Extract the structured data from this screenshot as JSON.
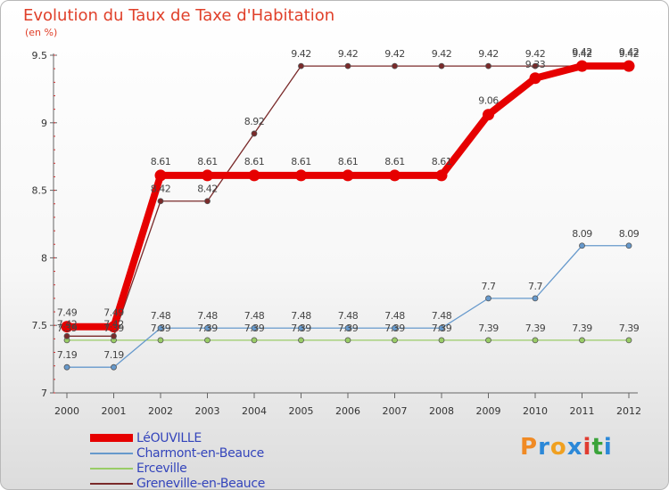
{
  "header": {
    "title": "Evolution du Taux de Taxe d'Habitation",
    "unit": "(en %)"
  },
  "logo": {
    "text": "Proxiti",
    "colors": [
      "#f08a24",
      "#2b88d8",
      "#f0a020",
      "#2b88d8",
      "#e03c31",
      "#3aa33a",
      "#2b88d8"
    ]
  },
  "chart_data": {
    "type": "line",
    "title": "Evolution du Taux de Taxe d'Habitation",
    "ylabel": "(en %)",
    "xlabel": "",
    "x": [
      "2000",
      "2001",
      "2002",
      "2003",
      "2004",
      "2005",
      "2006",
      "2007",
      "2008",
      "2009",
      "2010",
      "2011",
      "2012"
    ],
    "ylim": [
      7,
      9.5
    ],
    "yticks": [
      "7",
      "7.5",
      "8",
      "8.5",
      "9",
      "9.5"
    ],
    "series": [
      {
        "name": "LéOUVILLE",
        "color": "#e60000",
        "values": [
          7.49,
          7.49,
          8.61,
          8.61,
          8.61,
          8.61,
          8.61,
          8.61,
          8.61,
          9.06,
          9.33,
          9.42,
          9.42
        ],
        "labels": [
          "7.49",
          "7.49",
          "8.61",
          "8.61",
          "8.61",
          "8.61",
          "8.61",
          "8.61",
          "8.61",
          "9.06",
          "9.33",
          "9.42",
          "9.42"
        ]
      },
      {
        "name": "Charmont-en-Beauce",
        "color": "#6699cc",
        "values": [
          7.19,
          7.19,
          7.48,
          7.48,
          7.48,
          7.48,
          7.48,
          7.48,
          7.48,
          7.7,
          7.7,
          8.09,
          8.09
        ],
        "labels": [
          "7.19",
          "7.19",
          "7.48",
          "7.48",
          "7.48",
          "7.48",
          "7.48",
          "7.48",
          "7.48",
          "7.7",
          "7.7",
          "8.09",
          "8.09"
        ]
      },
      {
        "name": "Erceville",
        "color": "#99cc66",
        "values": [
          7.39,
          7.39,
          7.39,
          7.39,
          7.39,
          7.39,
          7.39,
          7.39,
          7.39,
          7.39,
          7.39,
          7.39,
          7.39
        ],
        "labels": [
          "7.39",
          "7.39",
          "7.39",
          "7.39",
          "7.39",
          "7.39",
          "7.39",
          "7.39",
          "7.39",
          "7.39",
          "7.39",
          "7.39",
          "7.39"
        ]
      },
      {
        "name": "Greneville-en-Beauce",
        "color": "#7a2a2a",
        "values": [
          7.42,
          7.42,
          8.42,
          8.42,
          8.92,
          9.42,
          9.42,
          9.42,
          9.42,
          9.42,
          9.42,
          9.42,
          9.42
        ],
        "labels": [
          "7.42",
          "7.42",
          "8.42",
          "8.42",
          "8.92",
          "9.42",
          "9.42",
          "9.42",
          "9.42",
          "9.42",
          "9.42",
          "9.42",
          "9.42"
        ]
      }
    ],
    "legend_position": "bottom-left"
  }
}
